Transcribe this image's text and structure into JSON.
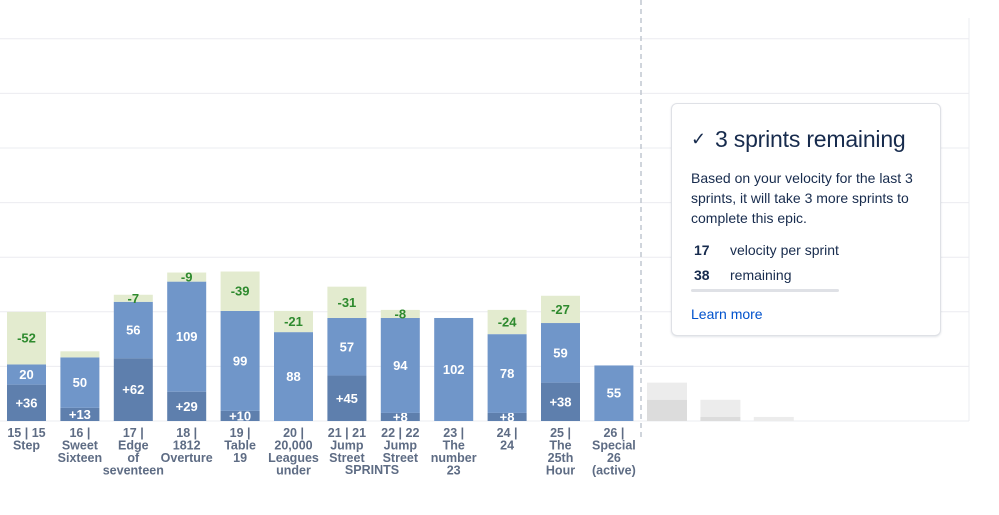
{
  "chart_data": {
    "type": "bar",
    "stacked": true,
    "xlabel": "SPRINTS",
    "categories": [
      [
        "15 | 15",
        "Step"
      ],
      [
        "16 |",
        "Sweet",
        "Sixteen"
      ],
      [
        "17 |",
        "Edge",
        "of",
        "seventeen"
      ],
      [
        "18 |",
        "1812",
        "Overture"
      ],
      [
        "19 |",
        "Table",
        "19"
      ],
      [
        "20 |",
        "20,000",
        "Leagues",
        "under"
      ],
      [
        "21 | 21",
        "Jump",
        "Street"
      ],
      [
        "22 | 22",
        "Jump",
        "Street"
      ],
      [
        "23 |",
        "The",
        "number",
        "23"
      ],
      [
        "24 |",
        "24"
      ],
      [
        "25 |",
        "The",
        "25th",
        "Hour"
      ],
      [
        "26 |",
        "Special",
        "26",
        "(active)"
      ]
    ],
    "series": [
      {
        "key": "added",
        "color": "#5e7fad",
        "values": [
          36,
          13,
          62,
          29,
          10,
          0,
          45,
          8,
          0,
          8,
          38,
          0
        ],
        "labels": [
          "+36",
          "+13",
          "+62",
          "+29",
          "+10",
          "",
          "+45",
          "+8",
          "",
          "+8",
          "+38",
          ""
        ]
      },
      {
        "key": "completed",
        "color": "#7096c9",
        "values": [
          20,
          50,
          56,
          109,
          99,
          88,
          57,
          94,
          102,
          78,
          59,
          55
        ],
        "labels": [
          "20",
          "50",
          "56",
          "109",
          "99",
          "88",
          "57",
          "94",
          "102",
          "78",
          "59",
          "55"
        ]
      },
      {
        "key": "removed",
        "color": "#e3ebcf",
        "values": [
          52,
          6,
          7,
          9,
          39,
          21,
          31,
          8,
          0,
          24,
          27,
          0
        ],
        "labels": [
          "-52",
          "",
          "-7",
          "-9",
          "-39",
          "-21",
          "-31",
          "-8",
          "",
          "-24",
          "-27",
          ""
        ]
      }
    ],
    "forecast": {
      "color_light": "#ececec",
      "color_dark": "#dcdcdc",
      "bars": [
        {
          "bottom": 21,
          "top": 38
        },
        {
          "bottom": 4,
          "top": 21
        },
        {
          "bottom": 0,
          "top": 4
        }
      ]
    },
    "ylim": [
      0,
      150
    ],
    "grid": true,
    "colors": {
      "added_text": "#ffffff",
      "completed_text": "#ffffff",
      "removed_text": "#2e8a2e"
    }
  },
  "popup": {
    "check_icon": "check-icon",
    "title": "3 sprints remaining",
    "description": "Based on your velocity for the last 3 sprints, it will take 3 more sprints to complete this epic.",
    "velocity_value": "17",
    "velocity_label": "velocity per sprint",
    "remaining_value": "38",
    "remaining_label": "remaining",
    "learn_more": "Learn more"
  }
}
